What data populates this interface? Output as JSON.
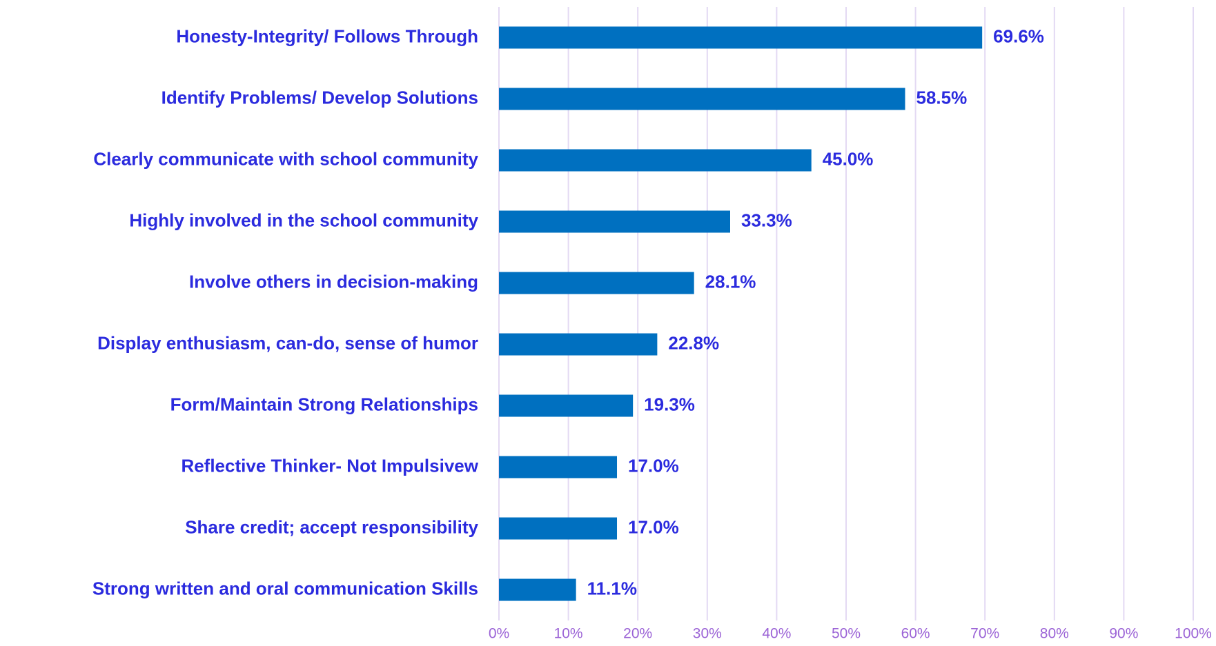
{
  "chart_data": {
    "type": "bar",
    "orientation": "horizontal",
    "categories": [
      "Honesty-Integrity/ Follows Through",
      "Identify Problems/ Develop Solutions",
      "Clearly communicate with school community",
      "Highly involved in the school community",
      "Involve others in decision-making",
      "Display enthusiasm, can-do, sense of humor",
      "Form/Maintain Strong Relationships",
      "Reflective Thinker- Not Impulsivew",
      "Share credit; accept responsibility",
      "Strong written and oral communication Skills"
    ],
    "values": [
      69.6,
      58.5,
      45.0,
      33.3,
      28.1,
      22.8,
      19.3,
      17.0,
      17.0,
      11.1
    ],
    "value_labels": [
      "69.6%",
      "58.5%",
      "45.0%",
      "33.3%",
      "28.1%",
      "22.8%",
      "19.3%",
      "17.0%",
      "17.0%",
      "11.1%"
    ],
    "color": "#0070c0",
    "xlim": [
      0,
      100
    ],
    "xticks": [
      {
        "value": 0,
        "label": "0%"
      },
      {
        "value": 10,
        "label": "10%"
      },
      {
        "value": 20,
        "label": "20%"
      },
      {
        "value": 30,
        "label": "30%"
      },
      {
        "value": 40,
        "label": "40%"
      },
      {
        "value": 50,
        "label": "50%"
      },
      {
        "value": 60,
        "label": "60%"
      },
      {
        "value": 70,
        "label": "70%"
      },
      {
        "value": 80,
        "label": "80%"
      },
      {
        "value": 90,
        "label": "90%"
      },
      {
        "value": 100,
        "label": "100%"
      }
    ],
    "grid": true
  }
}
